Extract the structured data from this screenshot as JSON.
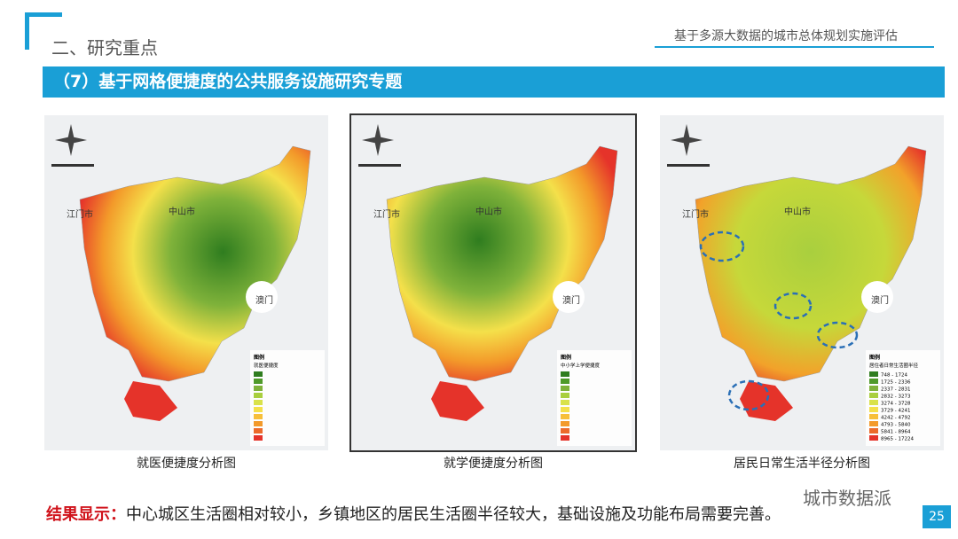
{
  "header": {
    "section": "二、研究重点",
    "report_title": "基于多源大数据的城市总体规划实施评估"
  },
  "banner": "（7）基于网格便捷度的公共服务设施研究专题",
  "maps": [
    {
      "caption": "就医便捷度分析图",
      "labels": [
        "江门市",
        "中山市",
        "澳门"
      ],
      "legend_title": "图例",
      "legend_subtitle": "就医便捷度"
    },
    {
      "caption": "就学便捷度分析图",
      "labels": [
        "江门市",
        "中山市",
        "澳门"
      ],
      "legend_title": "图例",
      "legend_subtitle": "中小学上学便捷度"
    },
    {
      "caption": "居民日常生活半径分析图",
      "labels": [
        "江门市",
        "中山市",
        "澳门"
      ],
      "legend_title": "图例",
      "legend_subtitle": "居住者日常生活圈半径",
      "legend_items": [
        "748 - 1724",
        "1725 - 2336",
        "2337 - 2831",
        "2832 - 3273",
        "3274 - 3728",
        "3729 - 4241",
        "4242 - 4792",
        "4793 - 5840",
        "5841 - 8964",
        "8965 - 17224"
      ]
    }
  ],
  "conclusion": {
    "label": "结果显示：",
    "text": "中心城区生活圈相对较小，乡镇地区的居民生活圈半径较大，基础设施及功能布局需要完善。"
  },
  "watermark": "城市数据派",
  "page_number": "25"
}
